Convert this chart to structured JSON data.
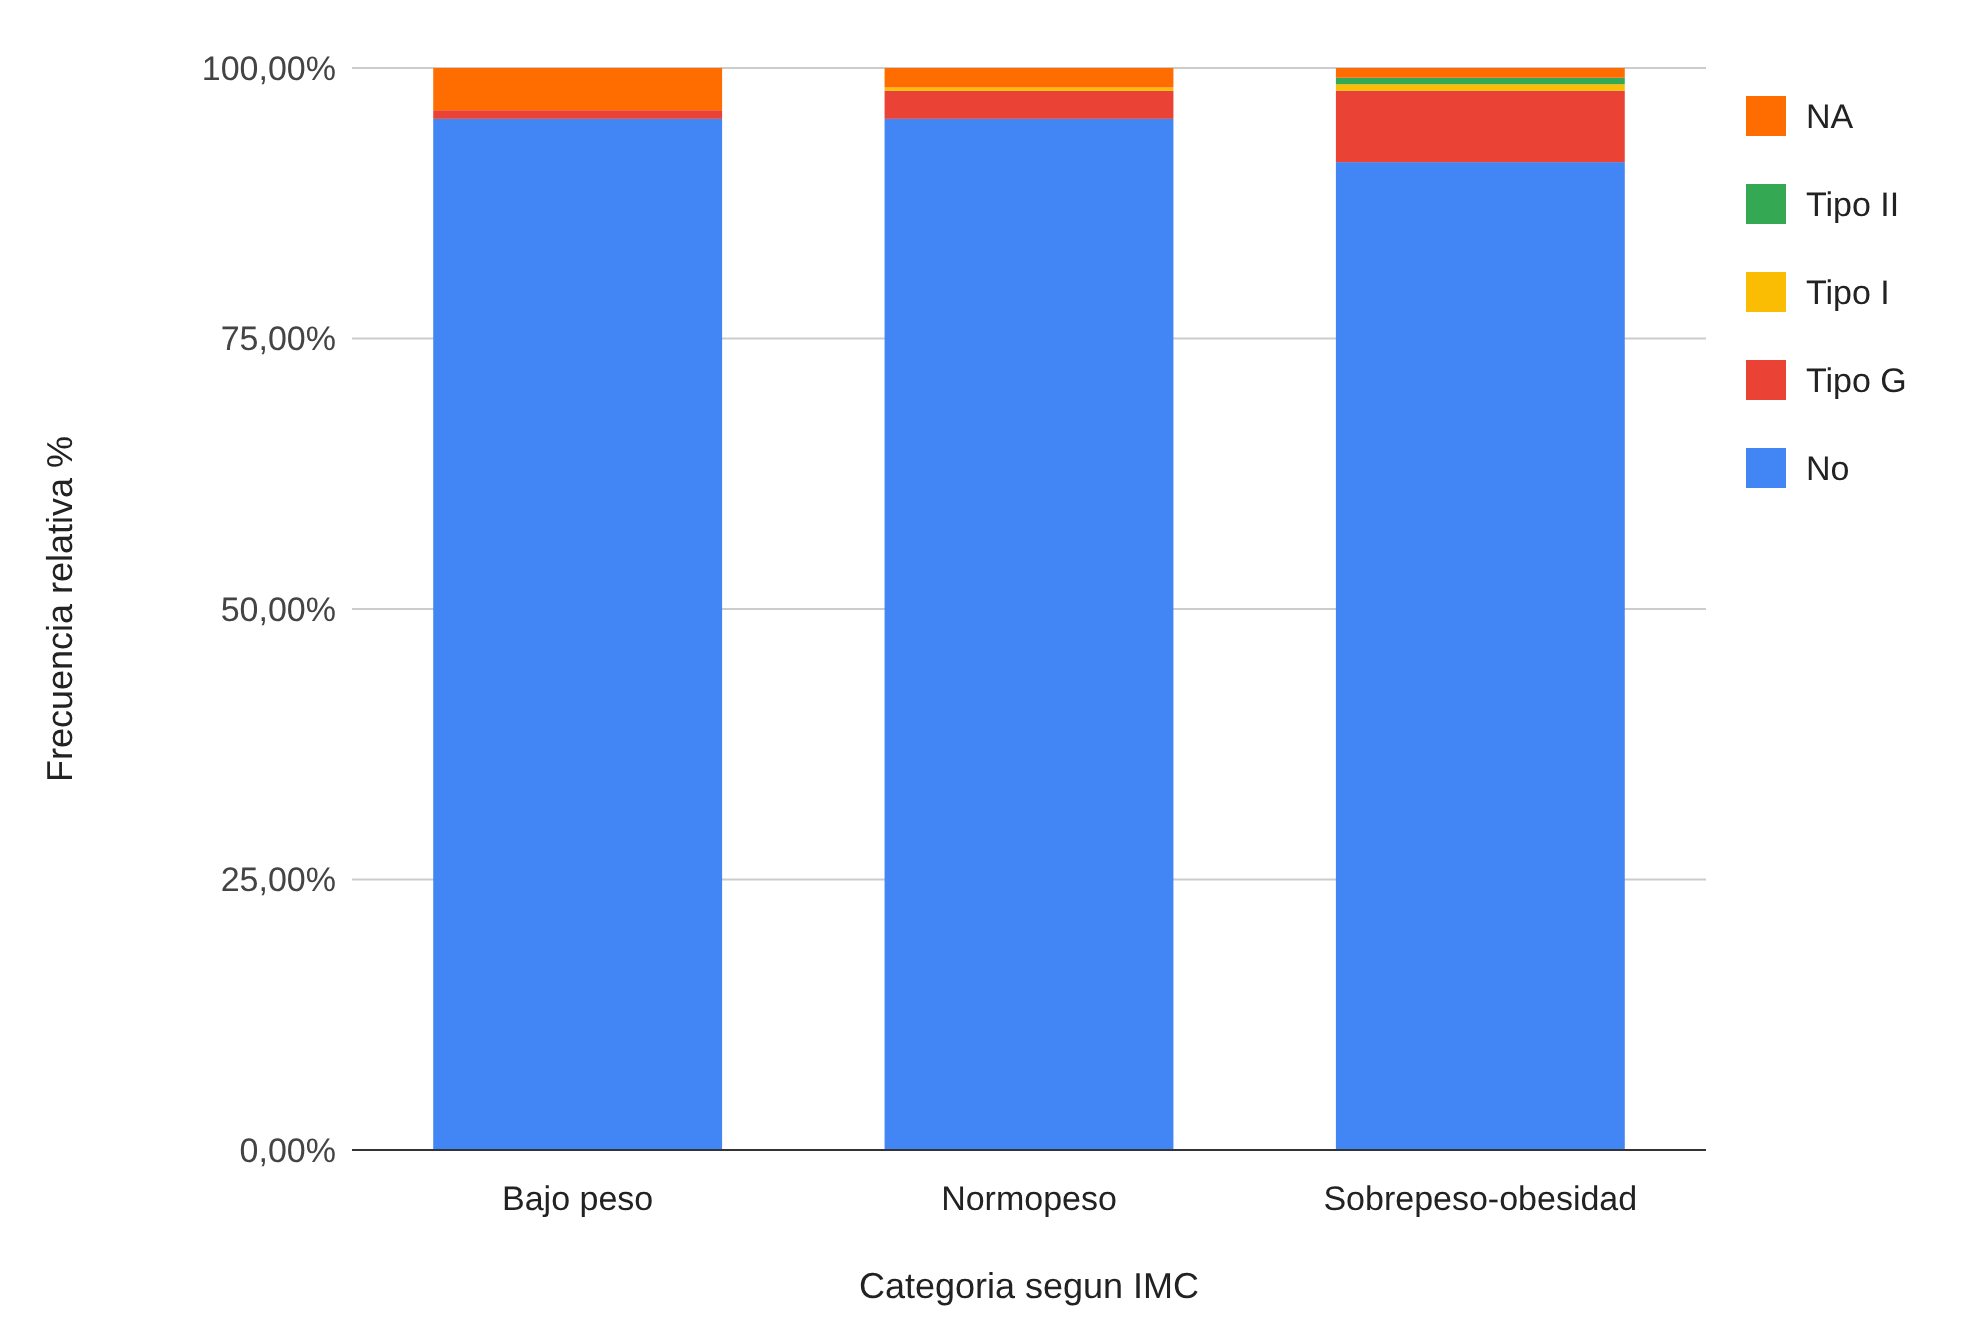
{
  "chart_data": {
    "type": "bar",
    "stacked": true,
    "xlabel": "Categoria segun IMC",
    "ylabel": "Frecuencia relativa %",
    "categories": [
      "Bajo peso",
      "Normopeso",
      "Sobrepeso-obesidad"
    ],
    "series": [
      {
        "name": "No",
        "color": "#4285f4",
        "values": [
          95.3,
          95.3,
          91.3
        ]
      },
      {
        "name": "Tipo G",
        "color": "#ea4335",
        "values": [
          0.8,
          2.6,
          6.6
        ]
      },
      {
        "name": "Tipo I",
        "color": "#fbbc04",
        "values": [
          0,
          0.3,
          0.6
        ]
      },
      {
        "name": "Tipo II",
        "color": "#34a853",
        "values": [
          0,
          0,
          0.6
        ]
      },
      {
        "name": "NA",
        "color": "#ff6d01",
        "values": [
          3.9,
          1.8,
          0.9
        ]
      }
    ],
    "ylim": [
      0,
      100
    ],
    "yticks": [
      {
        "value": 0,
        "label": "0,00%"
      },
      {
        "value": 25,
        "label": "25,00%"
      },
      {
        "value": 50,
        "label": "50,00%"
      },
      {
        "value": 75,
        "label": "75,00%"
      },
      {
        "value": 100,
        "label": "100,00%"
      }
    ],
    "grid": "y",
    "legend": "right"
  }
}
